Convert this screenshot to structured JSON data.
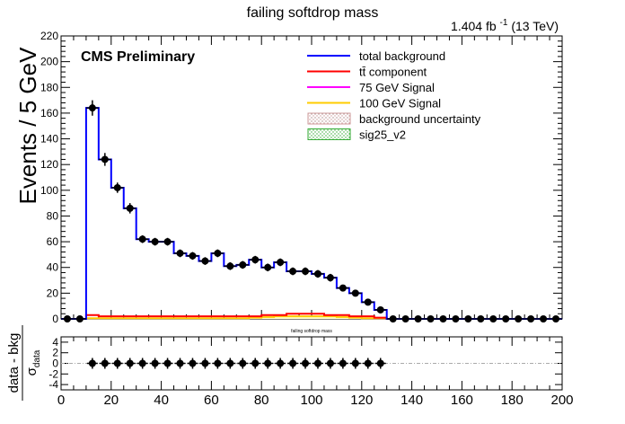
{
  "chart_data": [
    {
      "type": "line",
      "title": "failing softdrop mass",
      "lumi_label": "1.404 fb",
      "lumi_exponent": "-1",
      "lumi_energy": "(13 TeV)",
      "cms_label": "CMS Preliminary",
      "ylabel": "Events / 5 GeV",
      "xlim": [
        0,
        200
      ],
      "ylim": [
        0,
        220
      ],
      "y_ticks": [
        "0",
        "20",
        "40",
        "60",
        "80",
        "100",
        "120",
        "140",
        "160",
        "180",
        "200",
        "220"
      ],
      "legend_position": "top-right",
      "legend": [
        {
          "label": "total background",
          "color": "#0000ff",
          "style": "line"
        },
        {
          "label": "tt̄ component",
          "color": "#ff0000",
          "style": "line"
        },
        {
          "label": "75 GeV Signal",
          "color": "#ff00ff",
          "style": "line"
        },
        {
          "label": "100 GeV Signal",
          "color": "#ffcc00",
          "style": "line"
        },
        {
          "label": "background uncertainty",
          "color": "#cc9999",
          "style": "hatch"
        },
        {
          "label": "sig25_v2",
          "color": "#33aa33",
          "style": "hatch"
        }
      ],
      "bin_edges": [
        0,
        5,
        10,
        15,
        20,
        25,
        30,
        35,
        40,
        45,
        50,
        55,
        60,
        65,
        70,
        75,
        80,
        85,
        90,
        95,
        100,
        105,
        110,
        115,
        120,
        125,
        130,
        135,
        140,
        145,
        150,
        155,
        160,
        165,
        170,
        175,
        180,
        185,
        190,
        195,
        200
      ],
      "series": [
        {
          "name": "total background",
          "color": "#0000ff",
          "values": [
            0,
            0,
            164,
            124,
            102,
            86,
            62,
            60,
            60,
            51,
            49,
            45,
            51,
            41,
            42,
            46,
            40,
            44,
            37,
            37,
            35,
            32,
            24,
            20,
            13,
            7,
            0,
            0,
            0,
            0,
            0,
            0,
            0,
            0,
            0,
            0,
            0,
            0,
            0,
            0
          ]
        },
        {
          "name": "tt̄ component",
          "color": "#ff0000",
          "values": [
            0,
            0,
            3,
            2,
            2,
            2,
            2,
            2,
            2,
            2,
            2,
            2,
            2,
            2,
            2,
            2,
            3,
            3,
            4,
            4,
            4,
            3,
            3,
            2,
            2,
            1,
            0,
            0,
            0,
            0,
            0,
            0,
            0,
            0,
            0,
            0,
            0,
            0,
            0,
            0
          ]
        },
        {
          "name": "100 GeV Signal",
          "color": "#ffcc00",
          "values": [
            0,
            0,
            0.5,
            0.5,
            0.5,
            0.5,
            0.5,
            0.5,
            0.5,
            0.5,
            0.5,
            0.5,
            0.5,
            0.5,
            0.5,
            1,
            1.5,
            2,
            2,
            2,
            2,
            2,
            1.5,
            1,
            0.5,
            0.5,
            0,
            0,
            0,
            0,
            0,
            0,
            0,
            0,
            0,
            0,
            0,
            0,
            0,
            0
          ]
        }
      ],
      "data_points": {
        "x": [
          2.5,
          7.5,
          12.5,
          17.5,
          22.5,
          27.5,
          32.5,
          37.5,
          42.5,
          47.5,
          52.5,
          57.5,
          62.5,
          67.5,
          72.5,
          77.5,
          82.5,
          87.5,
          92.5,
          97.5,
          102.5,
          107.5,
          112.5,
          117.5,
          122.5,
          127.5,
          132.5,
          137.5,
          142.5,
          147.5,
          152.5,
          157.5,
          162.5,
          167.5,
          172.5,
          177.5,
          182.5,
          187.5,
          192.5,
          197.5
        ],
        "y": [
          0,
          0,
          164,
          124,
          102,
          86,
          62,
          60,
          60,
          51,
          49,
          45,
          51,
          41,
          42,
          46,
          40,
          44,
          37,
          37,
          35,
          32,
          24,
          20,
          13,
          7,
          0,
          0,
          0,
          0,
          0,
          0,
          0,
          0,
          0,
          0,
          0,
          0,
          0,
          0
        ],
        "yerr": [
          0,
          0,
          6,
          5,
          4,
          4,
          3,
          3,
          3,
          3,
          3,
          3,
          3,
          3,
          3,
          3,
          3,
          3,
          3,
          3,
          3,
          3,
          2.5,
          2.5,
          2,
          1.5,
          0,
          0,
          0,
          0,
          0,
          0,
          0,
          0,
          0,
          0,
          0,
          0,
          0,
          0
        ]
      }
    },
    {
      "type": "scatter",
      "title": "failing softdrop mass",
      "ylabel_num": "data - bkg",
      "ylabel_den_symbol": "σ",
      "ylabel_den_sub": "data",
      "xlim": [
        0,
        200
      ],
      "ylim": [
        -5,
        5
      ],
      "y_ticks": [
        "-4",
        "-2",
        "0",
        "2",
        "4"
      ],
      "x_ticks": [
        "0",
        "20",
        "40",
        "60",
        "80",
        "100",
        "120",
        "140",
        "160",
        "180",
        "200"
      ],
      "points": {
        "x": [
          12.5,
          17.5,
          22.5,
          27.5,
          32.5,
          37.5,
          42.5,
          47.5,
          52.5,
          57.5,
          62.5,
          67.5,
          72.5,
          77.5,
          82.5,
          87.5,
          92.5,
          97.5,
          102.5,
          107.5,
          112.5,
          117.5,
          122.5,
          127.5
        ],
        "y": [
          0,
          0,
          0,
          0,
          0,
          0,
          0,
          0,
          0,
          0,
          0,
          0,
          0,
          0,
          0,
          0,
          0,
          0,
          0,
          0,
          0,
          0,
          0,
          0
        ]
      },
      "zero_line_color": "#aaaaaa"
    }
  ]
}
